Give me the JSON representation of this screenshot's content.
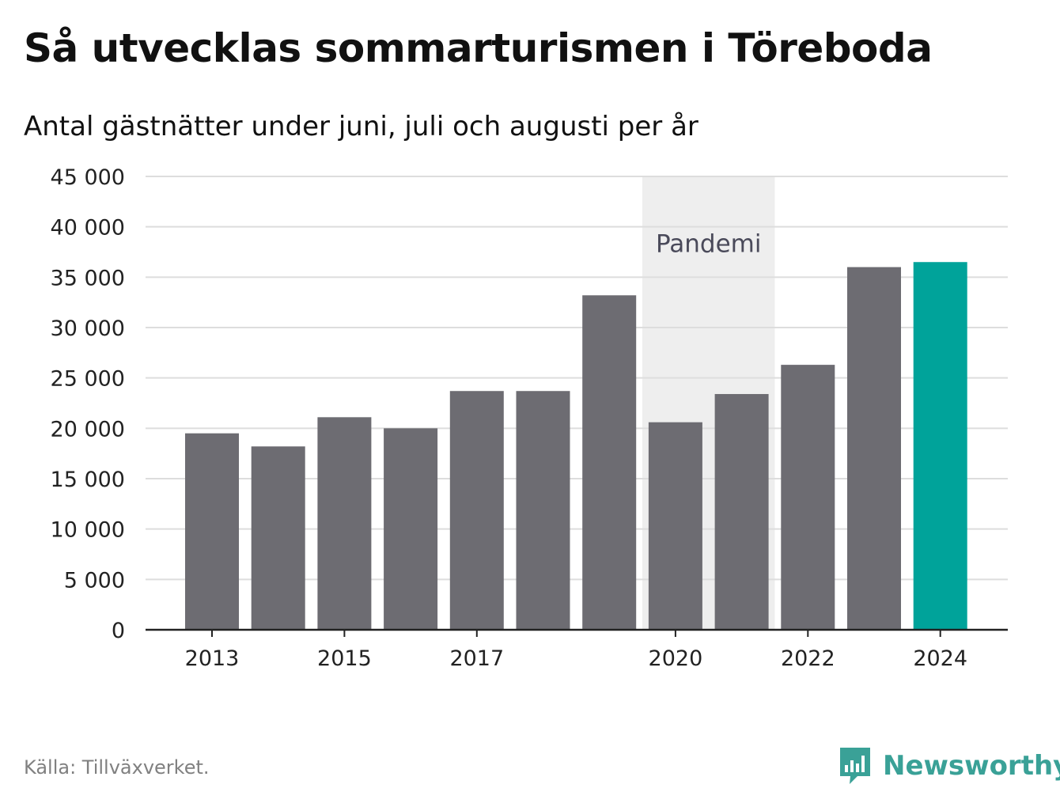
{
  "title": "Så utvecklas sommarturismen i Töreboda",
  "subtitle": "Antal gästnätter under juni, juli och augusti per år",
  "source": "Källa: Tillväxverket.",
  "brand": {
    "name": "Newsworthy",
    "icon": "newsworthy-logo-icon",
    "color": "#3aa197"
  },
  "colors": {
    "bar": "#6d6c72",
    "highlight": "#00a39a",
    "pandemic_band": "#eeeeee",
    "grid": "#dddddd",
    "axis": "#222222",
    "annotation_text": "#4a4a5a"
  },
  "chart_data": {
    "type": "bar",
    "title": "Så utvecklas sommarturismen i Töreboda",
    "subtitle": "Antal gästnätter under juni, juli och augusti per år",
    "xlabel": "",
    "ylabel": "",
    "categories": [
      "2013",
      "2014",
      "2015",
      "2016",
      "2017",
      "2018",
      "2019",
      "2020",
      "2021",
      "2022",
      "2023",
      "2024"
    ],
    "values": [
      19500,
      18200,
      21100,
      20000,
      23700,
      23700,
      33200,
      20600,
      23400,
      26300,
      36000,
      36500
    ],
    "highlight_category": "2024",
    "ylim": [
      0,
      45000
    ],
    "yticks": [
      0,
      5000,
      10000,
      15000,
      20000,
      25000,
      30000,
      35000,
      40000,
      45000
    ],
    "ytick_labels": [
      "0",
      "5 000",
      "10 000",
      "15 000",
      "20 000",
      "25 000",
      "30 000",
      "35 000",
      "40 000",
      "45 000"
    ],
    "xtick_labels_shown": [
      "2013",
      "2015",
      "2017",
      "2020",
      "2022",
      "2024"
    ],
    "grid": true,
    "legend": "none",
    "annotations": [
      {
        "text": "Pandemi",
        "x_start": 2019.5,
        "x_end": 2021.5,
        "type": "shaded-band"
      }
    ]
  }
}
